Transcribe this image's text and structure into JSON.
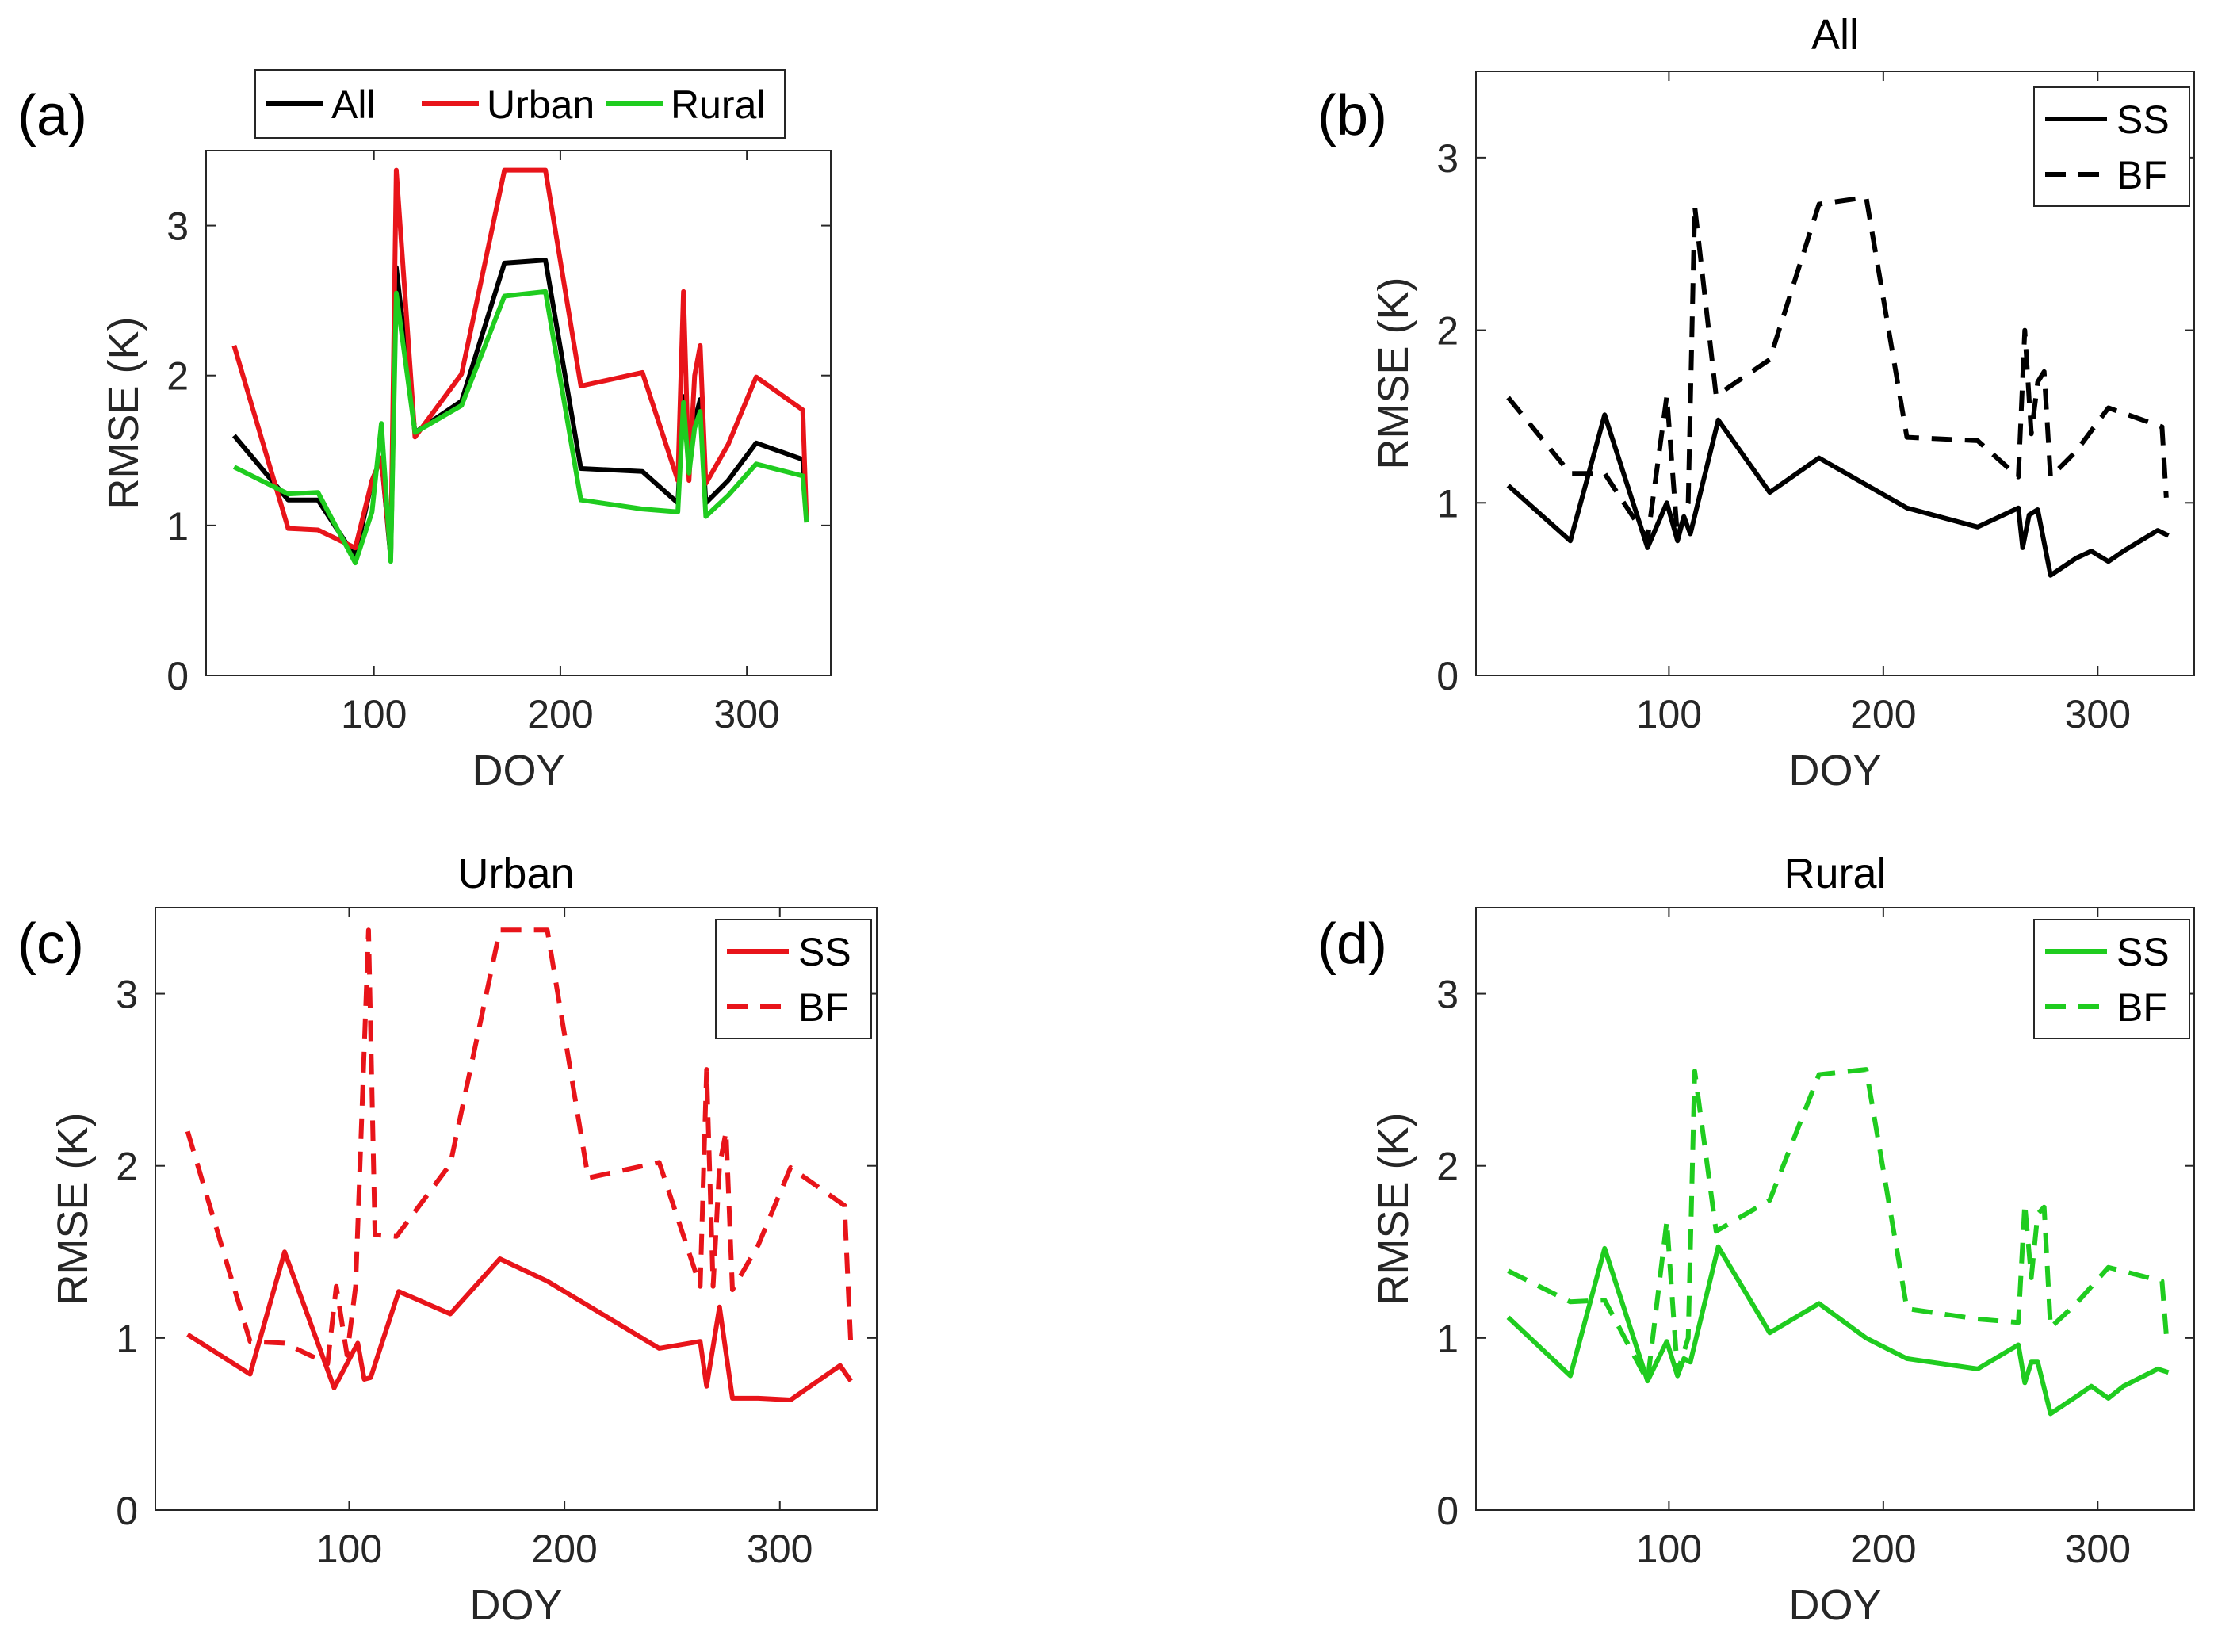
{
  "chart_data": [
    {
      "panel_label": "(a)",
      "type": "line",
      "title": "",
      "xlabel": "DOY",
      "ylabel": "RMSE (K)",
      "xlim": [
        10,
        345
      ],
      "ylim": [
        0,
        3.5
      ],
      "xticks": [
        100,
        200,
        300
      ],
      "yticks": [
        0,
        1,
        2,
        3
      ],
      "legend_position": "top-outside",
      "series": [
        {
          "name": "All",
          "color": "#000000",
          "dash": "solid",
          "x": [
            25,
            54,
            70,
            90,
            99,
            104,
            109,
            112,
            122,
            147,
            170,
            192,
            211,
            244,
            263,
            266,
            269,
            272,
            275,
            278,
            290,
            305,
            330,
            332
          ],
          "y": [
            1.6,
            1.17,
            1.17,
            0.79,
            1.3,
            1.45,
            0.78,
            2.72,
            1.62,
            1.83,
            2.75,
            2.77,
            1.38,
            1.36,
            1.15,
            1.86,
            1.4,
            1.7,
            1.84,
            1.15,
            1.3,
            1.55,
            1.44,
            1.03
          ]
        },
        {
          "name": "Urban",
          "color": "#e8141a",
          "dash": "solid",
          "x": [
            25,
            54,
            70,
            90,
            99,
            104,
            109,
            112,
            122,
            147,
            170,
            192,
            211,
            244,
            263,
            266,
            269,
            272,
            275,
            278,
            290,
            305,
            330,
            332
          ],
          "y": [
            2.2,
            0.98,
            0.97,
            0.85,
            1.3,
            1.45,
            0.8,
            3.37,
            1.59,
            2.01,
            3.37,
            3.37,
            1.93,
            2.02,
            1.3,
            2.56,
            1.3,
            2.0,
            2.2,
            1.28,
            1.54,
            1.99,
            1.77,
            1.04
          ]
        },
        {
          "name": "Rural",
          "color": "#1fcc1f",
          "dash": "solid",
          "x": [
            25,
            54,
            70,
            90,
            99,
            104,
            109,
            112,
            122,
            147,
            170,
            192,
            211,
            244,
            263,
            266,
            269,
            272,
            275,
            278,
            290,
            305,
            330,
            332
          ],
          "y": [
            1.39,
            1.21,
            1.22,
            0.75,
            1.09,
            1.68,
            0.76,
            2.55,
            1.62,
            1.8,
            2.53,
            2.56,
            1.17,
            1.11,
            1.09,
            1.82,
            1.35,
            1.65,
            1.76,
            1.06,
            1.2,
            1.41,
            1.33,
            1.02
          ]
        }
      ]
    },
    {
      "panel_label": "(b)",
      "type": "line",
      "title": "All",
      "xlabel": "DOY",
      "ylabel": "RMSE (K)",
      "xlim": [
        10,
        345
      ],
      "ylim": [
        0,
        3.5
      ],
      "xticks": [
        100,
        200,
        300
      ],
      "yticks": [
        0,
        1,
        2,
        3
      ],
      "legend_position": "top-right",
      "series": [
        {
          "name": "SS",
          "color": "#000000",
          "dash": "solid",
          "x": [
            25,
            54,
            70,
            90,
            99,
            104,
            107,
            110,
            123,
            147,
            170,
            211,
            244,
            263,
            265,
            268,
            272,
            278,
            290,
            297,
            305,
            312,
            328,
            333
          ],
          "y": [
            1.1,
            0.78,
            1.51,
            0.74,
            1.0,
            0.78,
            0.92,
            0.82,
            1.48,
            1.06,
            1.26,
            0.97,
            0.86,
            0.97,
            0.74,
            0.93,
            0.96,
            0.58,
            0.68,
            0.72,
            0.66,
            0.72,
            0.84,
            0.81
          ]
        },
        {
          "name": "BF",
          "color": "#000000",
          "dash": "dashed",
          "x": [
            25,
            54,
            70,
            90,
            99,
            104,
            109,
            112,
            122,
            147,
            170,
            192,
            211,
            244,
            263,
            266,
            269,
            272,
            275,
            278,
            290,
            305,
            330,
            332
          ],
          "y": [
            1.61,
            1.17,
            1.17,
            0.79,
            1.62,
            0.8,
            1.0,
            2.72,
            1.62,
            1.83,
            2.73,
            2.77,
            1.38,
            1.36,
            1.15,
            2.0,
            1.4,
            1.7,
            1.76,
            1.15,
            1.3,
            1.55,
            1.44,
            1.03
          ]
        }
      ]
    },
    {
      "panel_label": "(c)",
      "type": "line",
      "title": "Urban",
      "xlabel": "DOY",
      "ylabel": "RMSE (K)",
      "xlim": [
        10,
        345
      ],
      "ylim": [
        0,
        3.5
      ],
      "xticks": [
        100,
        200,
        300
      ],
      "yticks": [
        0,
        1,
        2,
        3
      ],
      "legend_position": "top-right",
      "series": [
        {
          "name": "SS",
          "color": "#e8141a",
          "dash": "solid",
          "x": [
            25,
            54,
            70,
            93,
            104,
            107,
            110,
            123,
            147,
            170,
            192,
            244,
            263,
            266,
            272,
            278,
            290,
            305,
            328,
            333
          ],
          "y": [
            1.02,
            0.79,
            1.5,
            0.71,
            0.97,
            0.76,
            0.77,
            1.27,
            1.14,
            1.46,
            1.33,
            0.94,
            0.98,
            0.72,
            1.18,
            0.65,
            0.65,
            0.64,
            0.84,
            0.75
          ]
        },
        {
          "name": "BF",
          "color": "#e8141a",
          "dash": "dashed",
          "x": [
            25,
            54,
            70,
            90,
            94,
            99,
            103,
            109,
            112,
            122,
            147,
            170,
            192,
            211,
            244,
            263,
            266,
            269,
            272,
            275,
            278,
            290,
            305,
            330,
            333
          ],
          "y": [
            2.2,
            0.98,
            0.97,
            0.85,
            1.3,
            0.9,
            1.3,
            3.37,
            1.6,
            1.59,
            2.01,
            3.37,
            3.37,
            1.93,
            2.02,
            1.3,
            2.56,
            1.3,
            2.0,
            2.2,
            1.28,
            1.54,
            1.99,
            1.77,
            0.95
          ]
        }
      ]
    },
    {
      "panel_label": "(d)",
      "type": "line",
      "title": "Rural",
      "xlabel": "DOY",
      "ylabel": "RMSE (K)",
      "xlim": [
        10,
        345
      ],
      "ylim": [
        0,
        3.5
      ],
      "xticks": [
        100,
        200,
        300
      ],
      "yticks": [
        0,
        1,
        2,
        3
      ],
      "legend_position": "top-right",
      "series": [
        {
          "name": "SS",
          "color": "#1fcc1f",
          "dash": "solid",
          "x": [
            25,
            54,
            70,
            90,
            99,
            104,
            107,
            110,
            123,
            147,
            170,
            192,
            211,
            244,
            263,
            266,
            269,
            272,
            278,
            290,
            297,
            305,
            312,
            328,
            333
          ],
          "y": [
            1.12,
            0.78,
            1.52,
            0.75,
            0.98,
            0.78,
            0.88,
            0.86,
            1.53,
            1.03,
            1.2,
            1.0,
            0.88,
            0.82,
            0.96,
            0.74,
            0.86,
            0.86,
            0.56,
            0.66,
            0.72,
            0.65,
            0.72,
            0.82,
            0.8
          ]
        },
        {
          "name": "BF",
          "color": "#1fcc1f",
          "dash": "dashed",
          "x": [
            25,
            54,
            70,
            90,
            99,
            104,
            109,
            112,
            122,
            147,
            170,
            192,
            211,
            244,
            263,
            266,
            269,
            272,
            275,
            278,
            290,
            305,
            330,
            332
          ],
          "y": [
            1.39,
            1.21,
            1.22,
            0.75,
            1.68,
            0.8,
            1.0,
            2.55,
            1.62,
            1.8,
            2.53,
            2.56,
            1.17,
            1.11,
            1.09,
            1.78,
            1.35,
            1.72,
            1.76,
            1.06,
            1.2,
            1.41,
            1.33,
            1.02
          ]
        }
      ]
    }
  ]
}
